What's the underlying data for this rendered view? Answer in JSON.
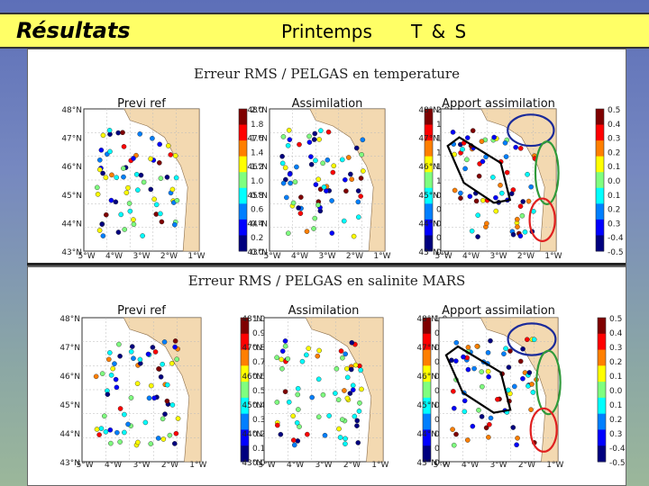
{
  "header": {
    "title": "Résultats",
    "season": "Printemps",
    "variables": "T & S"
  },
  "chart_data": [
    {
      "type": "scatter",
      "title": "Erreur RMS / PELGAS en temperature",
      "panels": [
        {
          "title": "Previ ref",
          "colorbar": {
            "labels": [
              "2.0",
              "1.8",
              "1.6",
              "1.4",
              "1.2",
              "1.0",
              "0.8",
              "0.6",
              "0.4",
              "0.2",
              "0.0"
            ]
          }
        },
        {
          "title": "Assimilation",
          "colorbar": {
            "labels": [
              "2.0",
              "1.8",
              "1.6",
              "1.4",
              "1.2",
              "1.0",
              "0.8",
              "0.6",
              "0.4",
              "0.2",
              "0.0"
            ]
          }
        },
        {
          "title": "Apport assimilation",
          "colorbar": {
            "labels": [
              "0.5",
              "0.4",
              "0.3",
              "0.2",
              "0.1",
              "0.0",
              "0.1",
              "0.2",
              "0.3",
              "-0.4",
              "-0.5"
            ]
          }
        }
      ],
      "lat_labels": [
        "48°N",
        "47°N",
        "46°N",
        "45°N",
        "44°N",
        "43°N"
      ],
      "lon_labels": [
        "5°W",
        "4°W",
        "3°W",
        "2°W",
        "1°W"
      ]
    },
    {
      "type": "scatter",
      "title": "Erreur RMS / PELGAS en salinite MARS",
      "panels": [
        {
          "title": "Previ ref",
          "colorbar": {
            "labels": [
              "1.0",
              "0.9",
              "0.8",
              "0.7",
              "0.6",
              "0.5",
              "0.4",
              "0.3",
              "0.2",
              "0.1",
              "0.0"
            ]
          }
        },
        {
          "title": "Assimilation",
          "colorbar": {
            "labels": [
              "1.0",
              "0.9",
              "0.8",
              "0.7",
              "0.6",
              "0.5",
              "0.4",
              "0.3",
              "0.2",
              "0.1",
              "0.0"
            ]
          }
        },
        {
          "title": "Apport assimilation",
          "colorbar": {
            "labels": [
              "0.5",
              "0.4",
              "0.3",
              "0.2",
              "0.1",
              "0.0",
              "0.1",
              "0.2",
              "0.3",
              "-0.4",
              "-0.5"
            ]
          }
        }
      ],
      "lat_labels": [
        "48°N",
        "47°N",
        "46°N",
        "45°N",
        "44°N",
        "43°N"
      ],
      "lon_labels": [
        "5°W",
        "4°W",
        "3°W",
        "2°W",
        "1°W"
      ]
    }
  ],
  "colors": {
    "header_bg": "#ffff66",
    "highlight_blue": "#1a2a9a",
    "highlight_green": "#2f9a3a",
    "highlight_black": "#000000",
    "highlight_red": "#e02020"
  }
}
